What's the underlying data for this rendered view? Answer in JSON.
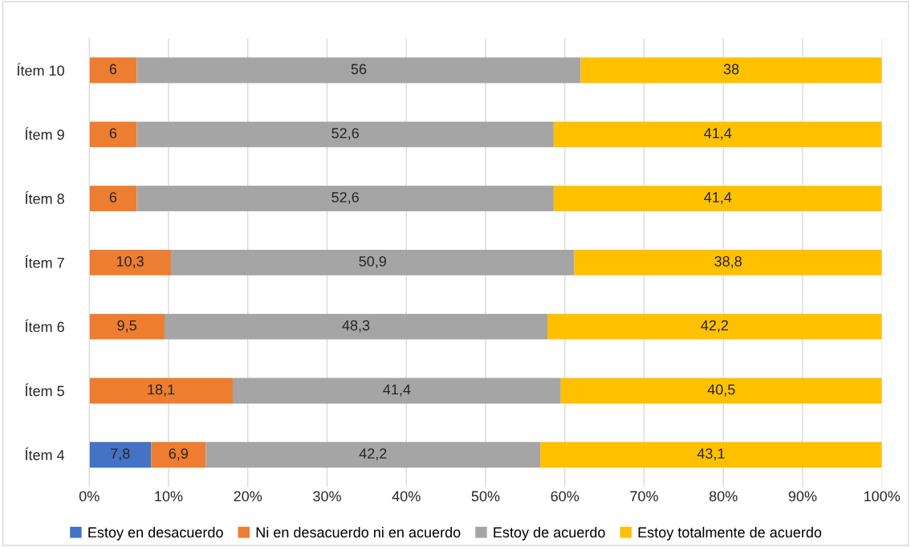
{
  "chart_data": {
    "type": "bar",
    "orientation": "horizontal",
    "stacked": true,
    "grid": "x",
    "legend": "bottom",
    "categories": [
      "Ítem 10",
      "Ítem 9",
      "Ítem 8",
      "Ítem 7",
      "Ítem 6",
      "Ítem 5",
      "Ítem 4"
    ],
    "xlim": [
      0,
      100
    ],
    "xticks": [
      {
        "value": 0,
        "label": "0%"
      },
      {
        "value": 10,
        "label": "10%"
      },
      {
        "value": 20,
        "label": "20%"
      },
      {
        "value": 30,
        "label": "30%"
      },
      {
        "value": 40,
        "label": "40%"
      },
      {
        "value": 50,
        "label": "50%"
      },
      {
        "value": 60,
        "label": "60%"
      },
      {
        "value": 70,
        "label": "70%"
      },
      {
        "value": 80,
        "label": "80%"
      },
      {
        "value": 90,
        "label": "90%"
      },
      {
        "value": 100,
        "label": "100%"
      }
    ],
    "series": [
      {
        "name": "Estoy en desacuerdo",
        "color": "#4472c4",
        "values": [
          null,
          null,
          null,
          null,
          null,
          null,
          7.8
        ],
        "value_labels": [
          null,
          null,
          null,
          null,
          null,
          null,
          "7,8"
        ]
      },
      {
        "name": "Ni en desacuerdo ni en acuerdo",
        "color": "#ed7d31",
        "values": [
          6,
          6,
          6,
          10.3,
          9.5,
          18.1,
          6.9
        ],
        "value_labels": [
          "6",
          "6",
          "6",
          "10,3",
          "9,5",
          "18,1",
          "6,9"
        ]
      },
      {
        "name": "Estoy de acuerdo",
        "color": "#a5a5a5",
        "values": [
          56,
          52.6,
          52.6,
          50.9,
          48.3,
          41.4,
          42.2
        ],
        "value_labels": [
          "56",
          "52,6",
          "52,6",
          "50,9",
          "48,3",
          "41,4",
          "42,2"
        ]
      },
      {
        "name": "Estoy totalmente de acuerdo",
        "color": "#ffc000",
        "values": [
          38,
          41.4,
          41.4,
          38.8,
          42.2,
          40.5,
          43.1
        ],
        "value_labels": [
          "38",
          "41,4",
          "41,4",
          "38,8",
          "42,2",
          "40,5",
          "43,1"
        ]
      }
    ]
  }
}
